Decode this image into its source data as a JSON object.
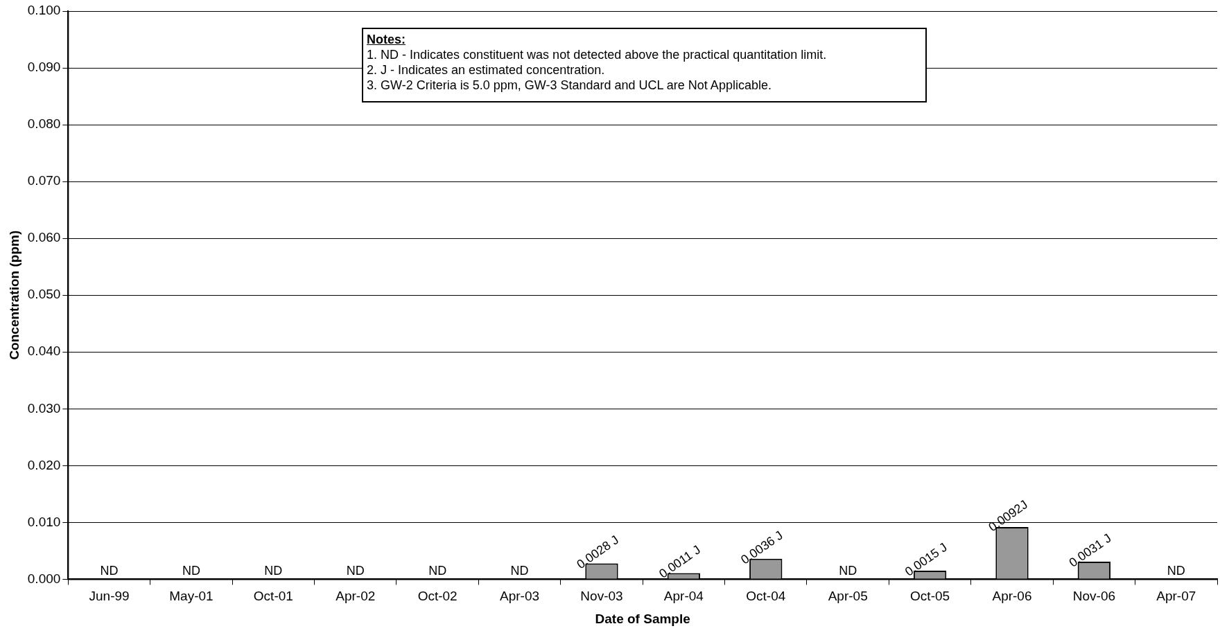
{
  "chart_data": {
    "type": "bar",
    "xlabel": "Date of Sample",
    "ylabel": "Concentration (ppm)",
    "categories": [
      "Jun-99",
      "May-01",
      "Oct-01",
      "Apr-02",
      "Oct-02",
      "Apr-03",
      "Nov-03",
      "Apr-04",
      "Oct-04",
      "Apr-05",
      "Oct-05",
      "Apr-06",
      "Nov-06",
      "Apr-07"
    ],
    "values": [
      null,
      null,
      null,
      null,
      null,
      null,
      0.0028,
      0.0011,
      0.0036,
      null,
      0.0015,
      0.0092,
      0.0031,
      null
    ],
    "value_labels": [
      "ND",
      "ND",
      "ND",
      "ND",
      "ND",
      "ND",
      "0.0028 J",
      "0.0011 J",
      "0.0036 J",
      "ND",
      "0.0015 J",
      "0.0092J",
      "0.0031 J",
      "ND"
    ],
    "color": "#999999",
    "ylim": [
      0,
      0.1
    ],
    "yticks": [
      {
        "value": 0,
        "label": "0.000"
      },
      {
        "value": 0.01,
        "label": "0.010"
      },
      {
        "value": 0.02,
        "label": "0.020"
      },
      {
        "value": 0.03,
        "label": "0.030"
      },
      {
        "value": 0.04,
        "label": "0.040"
      },
      {
        "value": 0.05,
        "label": "0.050"
      },
      {
        "value": 0.06,
        "label": "0.060"
      },
      {
        "value": 0.07,
        "label": "0.070"
      },
      {
        "value": 0.08,
        "label": "0.080"
      },
      {
        "value": 0.09,
        "label": "0.090"
      },
      {
        "value": 0.1,
        "label": "0.100"
      }
    ],
    "grid": "y",
    "annotations": [
      "Notes:",
      "1. ND - Indicates constituent was not detected above the practical quantitation limit.",
      "2. J - Indicates an estimated concentration.",
      "3. GW-2 Criteria is 5.0 ppm, GW-3 Standard and UCL are Not Applicable."
    ]
  }
}
